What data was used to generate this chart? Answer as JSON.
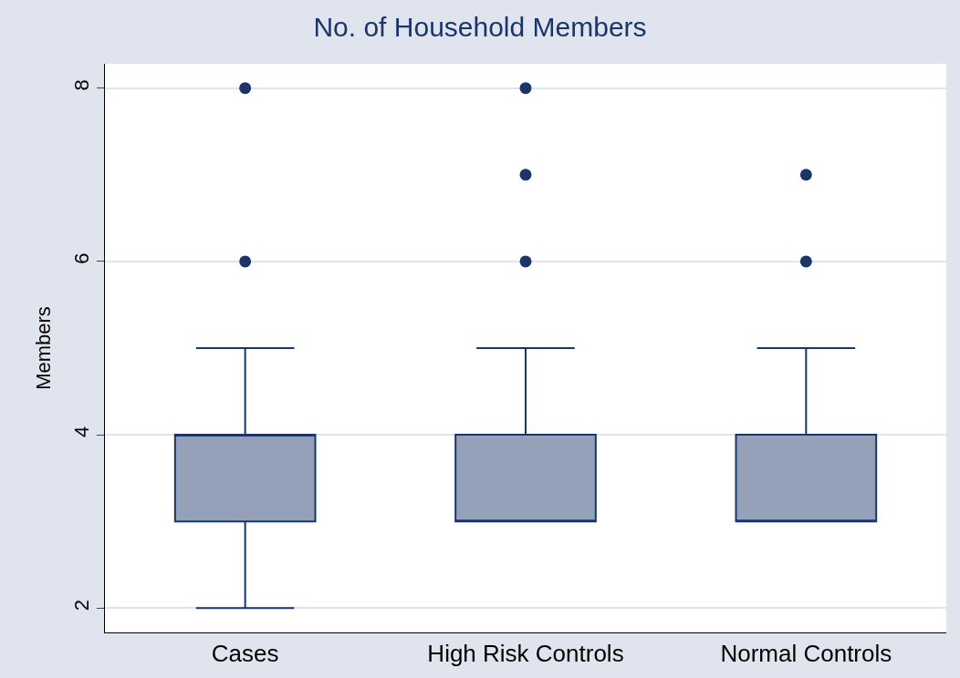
{
  "chart_data": {
    "type": "box",
    "title": "No. of Household Members",
    "ylabel": "Members",
    "categories": [
      "Cases",
      "High Risk Controls",
      "Normal Controls"
    ],
    "boxes": [
      {
        "low": 2,
        "q1": 3,
        "median": 4,
        "q3": 4,
        "high": 5,
        "outliers": [
          6,
          8
        ]
      },
      {
        "low": 3,
        "q1": 3,
        "median": 3,
        "q3": 4,
        "high": 5,
        "outliers": [
          6,
          7,
          8
        ]
      },
      {
        "low": 3,
        "q1": 3,
        "median": 3,
        "q3": 4,
        "high": 5,
        "outliers": [
          6,
          7
        ]
      }
    ],
    "color": "#94a1b8",
    "ylim": [
      1.72,
      8.28
    ],
    "yticks": [
      2,
      4,
      6,
      8
    ],
    "grid": "y"
  }
}
